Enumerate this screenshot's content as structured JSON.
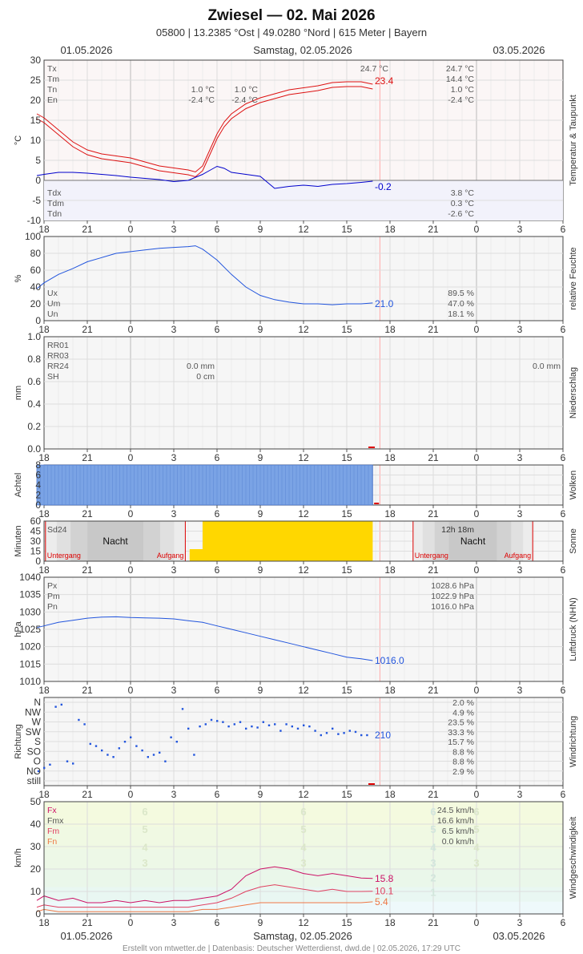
{
  "header": {
    "title": "Zwiesel  —  02. Mai 2026",
    "subtitle": "05800  |  13.2385 °Ost  |  49.0280 °Nord  |  615 Meter  |  Bayern",
    "date_left": "01.05.2026",
    "date_center": "Samstag, 02.05.2026",
    "date_right": "03.05.2026"
  },
  "footer": {
    "credit": "Erstellt von mtwetter.de | Datenbasis: Deutscher Wetterdienst, dwd.de | 02.05.2026, 17:29 UTC"
  },
  "x_axis": {
    "hours": [
      18,
      21,
      0,
      3,
      6,
      9,
      12,
      15,
      18,
      21,
      0,
      3,
      6
    ],
    "tick_labels": [
      "18",
      "21",
      "0",
      "3",
      "6",
      "9",
      "12",
      "15",
      "18",
      "21",
      "0",
      "3",
      "6"
    ]
  },
  "colors": {
    "temp": "#dd1111",
    "dew": "#0000cc",
    "humid": "#2255dd",
    "cloud": "#7aa3e5",
    "sun": "#ffd700",
    "night": "#d4d4d4",
    "wind_fx": "#cc1166",
    "wind_fmx": "#e04060",
    "wind_fm": "#ee7744"
  },
  "chart_data": [
    {
      "id": "temperature",
      "type": "line",
      "ylabel": "°C",
      "side_label": "Temperatur & Taupunkt",
      "ylim": [
        -10,
        30
      ],
      "yticks": [
        "30",
        "25",
        "20",
        "15",
        "10",
        "5",
        "0",
        "-5",
        "-10"
      ],
      "legend_top": [
        "Tx",
        "Tm",
        "Tn",
        "En"
      ],
      "legend_bottom": [
        "Tdx",
        "Tdm",
        "Tdn"
      ],
      "stats_day1": {
        "tn": "1.0 °C",
        "en": "-2.4 °C"
      },
      "stats_day2": {
        "tx": "24.7 °C",
        "tn": "1.0 °C",
        "en": "-2.4 °C"
      },
      "stats_day3": {
        "tx": "24.7 °C",
        "tm": "14.4 °C",
        "tn": "1.0 °C",
        "en": "-2.4 °C",
        "tdx": "3.8 °C",
        "tdm": "0.3 °C",
        "tdn": "-2.6 °C"
      },
      "current": {
        "temp": "23.4",
        "dew": "-0.2"
      },
      "series": [
        {
          "name": "T",
          "x": [
            17.5,
            18,
            19,
            20,
            21,
            22,
            23,
            24,
            25,
            26,
            27,
            28,
            28.5,
            29,
            29.5,
            30,
            30.5,
            31,
            32,
            33,
            34,
            35,
            36,
            37,
            38,
            39,
            40,
            40.8
          ],
          "y": [
            16,
            15,
            12,
            9,
            7,
            6,
            5.5,
            5,
            4,
            3,
            2.5,
            2,
            1.5,
            3,
            7,
            11,
            14,
            16,
            18.5,
            20,
            21,
            22,
            22.5,
            23,
            23.8,
            24,
            24,
            23.4
          ]
        },
        {
          "name": "Td",
          "x": [
            17.5,
            18,
            19,
            20,
            21,
            22,
            23,
            24,
            25,
            26,
            27,
            28,
            29,
            29.5,
            30,
            30.5,
            31,
            32,
            33,
            34,
            35,
            36,
            37,
            38,
            39,
            40,
            40.8
          ],
          "y": [
            1.2,
            1.5,
            2,
            2,
            1.8,
            1.5,
            1.2,
            0.8,
            0.5,
            0.2,
            -0.3,
            0,
            1.5,
            2.5,
            3.5,
            3,
            2,
            1.5,
            1,
            -2,
            -1.5,
            -1.2,
            -1.5,
            -1,
            -0.8,
            -0.5,
            -0.2
          ]
        }
      ]
    },
    {
      "id": "humidity",
      "type": "line",
      "ylabel": "%",
      "side_label": "relative Feuchte",
      "ylim": [
        0,
        100
      ],
      "yticks": [
        "100",
        "80",
        "60",
        "40",
        "20",
        "0"
      ],
      "legend": [
        "Ux",
        "Um",
        "Un"
      ],
      "stats": {
        "ux": "89.5 %",
        "um": "47.0 %",
        "un": "18.1 %"
      },
      "current": "21.0",
      "x": [
        17.5,
        18,
        19,
        20,
        21,
        22,
        23,
        24,
        25,
        26,
        27,
        28,
        28.5,
        29,
        30,
        31,
        32,
        33,
        34,
        35,
        36,
        37,
        38,
        39,
        40,
        40.8
      ],
      "y": [
        38,
        45,
        55,
        62,
        70,
        75,
        80,
        82,
        84,
        86,
        87,
        88,
        89,
        85,
        72,
        55,
        40,
        30,
        25,
        22,
        20,
        20,
        19,
        20,
        20,
        21
      ]
    },
    {
      "id": "precipitation",
      "type": "bar",
      "ylabel": "mm",
      "side_label": "Niederschlag",
      "ylim": [
        0,
        1
      ],
      "yticks": [
        "1.0",
        "0.8",
        "0.6",
        "0.4",
        "0.2",
        "0.0"
      ],
      "legend": [
        "RR01",
        "RR03",
        "RR24",
        "SH"
      ],
      "stats_day2": {
        "rr24": "0.0 mm",
        "sh": "0 cm"
      },
      "stats_day3": {
        "rr24": "0.0 mm"
      },
      "values": []
    },
    {
      "id": "clouds",
      "type": "bar",
      "ylabel": "Achtel",
      "side_label": "Wolken",
      "ylim": [
        0,
        8
      ],
      "yticks": [
        "8",
        "6",
        "4",
        "2",
        "0"
      ],
      "coverage": {
        "x_start": 17.5,
        "x_end": 40.8,
        "value": 8
      }
    },
    {
      "id": "sunshine",
      "type": "bar",
      "ylabel": "Minuten",
      "side_label": "Sonne",
      "ylim": [
        0,
        60
      ],
      "yticks": [
        "60",
        "45",
        "30",
        "15",
        "0"
      ],
      "sd24_label": "Sd24",
      "sd24_next": "12h 18m",
      "night_label": "Nacht",
      "sunset_label": "Untergang",
      "sunrise_label": "Aufgang",
      "nights": [
        {
          "set": 18.1,
          "rise": 27.8
        },
        {
          "set": 43.6,
          "rise": 51.9
        }
      ],
      "sun_bars": [
        {
          "x0": 28.1,
          "x1": 29.0,
          "v": 18
        },
        {
          "x0": 29.0,
          "x1": 40.8,
          "v": 60
        }
      ]
    },
    {
      "id": "pressure",
      "type": "line",
      "ylabel": "hPa",
      "side_label": "Luftdruck (NHN)",
      "ylim": [
        1010,
        1040
      ],
      "yticks": [
        "1040",
        "1035",
        "1030",
        "1025",
        "1020",
        "1015",
        "1010"
      ],
      "legend": [
        "Px",
        "Pm",
        "Pn"
      ],
      "stats": {
        "px": "1028.6 hPa",
        "pm": "1022.9 hPa",
        "pn": "1016.0 hPa"
      },
      "current": "1016.0",
      "x": [
        17.5,
        18,
        19,
        20,
        21,
        22,
        23,
        24,
        25,
        26,
        27,
        28,
        29,
        30,
        31,
        32,
        33,
        34,
        35,
        36,
        37,
        38,
        39,
        40,
        40.8
      ],
      "y": [
        1025.5,
        1026,
        1027,
        1027.6,
        1028.2,
        1028.5,
        1028.6,
        1028.4,
        1028.3,
        1028.2,
        1028,
        1027.5,
        1027,
        1026,
        1025,
        1024,
        1023,
        1022,
        1021,
        1020,
        1019,
        1018,
        1017,
        1016.5,
        1016
      ]
    },
    {
      "id": "wind_direction",
      "type": "scatter",
      "ylabel": "Richtung",
      "side_label": "Windrichtung",
      "categories": [
        "N",
        "NW",
        "W",
        "SW",
        "S",
        "SO",
        "O",
        "NO",
        "still"
      ],
      "stats": [
        "2.0 %",
        "4.9 %",
        "23.5 %",
        "33.3 %",
        "15.7 %",
        "8.8 %",
        "8.8 %",
        "2.9 %"
      ],
      "current": "210",
      "x": [
        17.6,
        18,
        18.4,
        18.8,
        19.2,
        19.6,
        20,
        20.4,
        20.8,
        21.2,
        21.6,
        22,
        22.4,
        22.8,
        23.2,
        23.6,
        24,
        24.4,
        24.8,
        25.2,
        25.6,
        26,
        26.4,
        26.8,
        27.2,
        27.6,
        28,
        28.4,
        28.8,
        29.2,
        29.6,
        30,
        30.4,
        30.8,
        31.2,
        31.6,
        32,
        32.4,
        32.8,
        33.2,
        33.6,
        34,
        34.4,
        34.8,
        35.2,
        35.6,
        36,
        36.4,
        36.8,
        37.2,
        37.6,
        38,
        38.4,
        38.8,
        39.2,
        39.6,
        40,
        40.4
      ],
      "y": [
        45,
        60,
        75,
        340,
        350,
        90,
        80,
        280,
        260,
        170,
        160,
        140,
        120,
        110,
        150,
        180,
        200,
        160,
        140,
        110,
        120,
        130,
        90,
        200,
        180,
        330,
        240,
        120,
        250,
        260,
        280,
        275,
        270,
        250,
        260,
        270,
        240,
        250,
        245,
        270,
        255,
        260,
        230,
        260,
        250,
        240,
        255,
        250,
        230,
        210,
        220,
        240,
        215,
        220,
        230,
        225,
        210,
        210
      ]
    },
    {
      "id": "wind_speed",
      "type": "line",
      "ylabel": "km/h",
      "side_label": "Windgeschwindigkeit",
      "ylim": [
        0,
        50
      ],
      "yticks": [
        "50",
        "40",
        "30",
        "20",
        "10",
        "0"
      ],
      "legend": [
        "Fx",
        "Fmx",
        "Fm",
        "Fn"
      ],
      "stats": {
        "fx": "24.5 km/h",
        "fmx": "16.6 km/h",
        "fm": "6.5 km/h",
        "fn": "0.0 km/h"
      },
      "current": {
        "fx": "15.8",
        "fmx": "10.1",
        "fm": "5.4"
      },
      "beaufort": [
        "6",
        "5",
        "4",
        "3",
        "2",
        "1"
      ],
      "series": [
        {
          "name": "Fx",
          "x": [
            17.5,
            18,
            19,
            20,
            21,
            22,
            23,
            24,
            25,
            26,
            27,
            28,
            29,
            30,
            31,
            32,
            33,
            34,
            35,
            36,
            37,
            38,
            39,
            40,
            40.8
          ],
          "y": [
            6,
            8,
            6,
            7,
            5,
            5,
            6,
            5,
            6,
            5,
            6,
            6,
            7,
            8,
            11,
            17,
            20,
            21,
            20,
            18,
            17,
            18,
            17,
            16,
            15.8
          ]
        },
        {
          "name": "Fmx",
          "x": [
            17.5,
            18,
            19,
            20,
            21,
            22,
            23,
            24,
            25,
            26,
            27,
            28,
            29,
            30,
            31,
            32,
            33,
            34,
            35,
            36,
            37,
            38,
            39,
            40,
            40.8
          ],
          "y": [
            3,
            4,
            3,
            3,
            3,
            3,
            3,
            3,
            3,
            3,
            3,
            3,
            4,
            5,
            7,
            10,
            12,
            13,
            12,
            11,
            10,
            11,
            10,
            10,
            10.1
          ]
        },
        {
          "name": "Fm",
          "x": [
            17.5,
            18,
            19,
            20,
            21,
            22,
            23,
            24,
            25,
            26,
            27,
            28,
            29,
            30,
            31,
            32,
            33,
            34,
            35,
            36,
            37,
            38,
            39,
            40,
            40.8
          ],
          "y": [
            1,
            2,
            1,
            1,
            1,
            1,
            1,
            1,
            1,
            1,
            1,
            1,
            2,
            2,
            3,
            4,
            5,
            5,
            5,
            5,
            5,
            5,
            5,
            5,
            5.4
          ]
        }
      ]
    }
  ]
}
